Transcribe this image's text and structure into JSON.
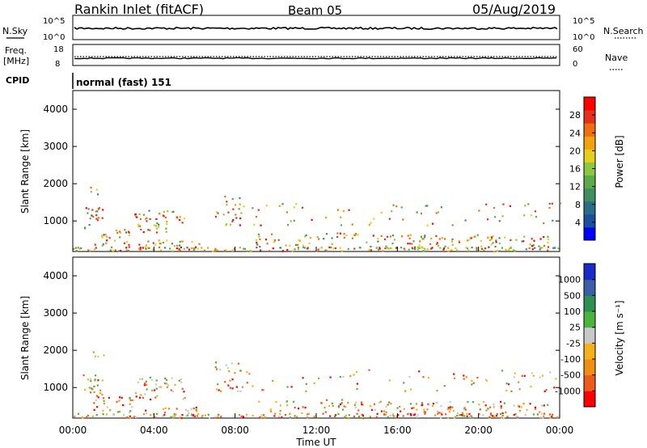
{
  "header": {
    "station": "Rankin Inlet (fitACF)",
    "beam": "Beam 05",
    "date": "05/Aug/2019"
  },
  "panel_nsky": {
    "left_label": "N.Sky",
    "left_ticks": [
      "10^5",
      "10^0"
    ],
    "right_ticks": [
      "10^5",
      "10^0"
    ],
    "right_label": "N.Search"
  },
  "panel_freq": {
    "left_label_1": "Freq.",
    "left_label_2": "[MHz]",
    "left_ticks": [
      "18",
      "8"
    ],
    "right_ticks": [
      "60",
      "0"
    ],
    "right_label": "Nave"
  },
  "cpid": {
    "label": "CPID",
    "mode": "normal (fast) 151"
  },
  "colors": {
    "power": [
      "#0000ff",
      "#1a4fa0",
      "#2a6e86",
      "#3f8f62",
      "#5cab48",
      "#8dc63f",
      "#e6cf1c",
      "#f2a10f",
      "#ef6e0f",
      "#e5301b",
      "#ff0000"
    ],
    "velocity": [
      "#ff0000",
      "#ee5a1a",
      "#f08e14",
      "#f5b11a",
      "#c8c8c8",
      "#4bb43c",
      "#2f8f55",
      "#3b5fa6",
      "#1a2cc8"
    ]
  },
  "chart_data": [
    {
      "type": "heatmap",
      "title": "Power",
      "ylabel": "Slant Range [km]",
      "xlabel": "",
      "ylim": [
        180,
        4500
      ],
      "yticks": [
        "1000",
        "2000",
        "3000",
        "4000"
      ],
      "xticks": [
        "00:00",
        "04:00",
        "08:00",
        "12:00",
        "16:00",
        "20:00",
        "00:00"
      ],
      "colorbar_label": "Power [dB]",
      "colorbar_ticks": [
        "4",
        "8",
        "12",
        "16",
        "20",
        "24",
        "28"
      ]
    },
    {
      "type": "heatmap",
      "title": "Velocity",
      "ylabel": "Slant Range [km]",
      "xlabel": "Time UT",
      "ylim": [
        180,
        4500
      ],
      "yticks": [
        "1000",
        "2000",
        "3000",
        "4000"
      ],
      "xticks": [
        "00:00",
        "04:00",
        "08:00",
        "12:00",
        "16:00",
        "20:00",
        "00:00"
      ],
      "colorbar_label": "Velocity [m s⁻¹]",
      "colorbar_ticks": [
        "1000",
        "500",
        "100",
        "25",
        "-25",
        "-100",
        "-500",
        "-1000"
      ]
    }
  ]
}
